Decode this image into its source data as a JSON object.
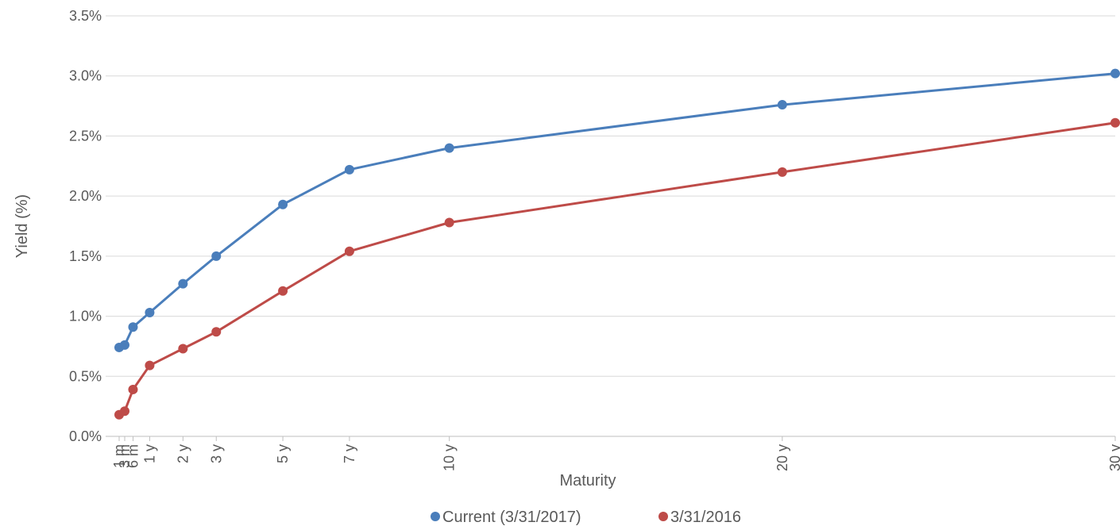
{
  "chart_data": {
    "type": "line",
    "xlabel": "Maturity",
    "ylabel": "Yield (%)",
    "y_unit": "%",
    "ylim": [
      0,
      3.5
    ],
    "y_ticks": [
      "0.0%",
      "0.5%",
      "1.0%",
      "1.5%",
      "2.0%",
      "2.5%",
      "3.0%",
      "3.5%"
    ],
    "x_scale": "linear in years",
    "x_ticks": [
      {
        "label": "1 m",
        "years": 0.0833
      },
      {
        "label": "3 m",
        "years": 0.25
      },
      {
        "label": "6 m",
        "years": 0.5
      },
      {
        "label": "1 y",
        "years": 1
      },
      {
        "label": "2 y",
        "years": 2
      },
      {
        "label": "3 y",
        "years": 3
      },
      {
        "label": "5 y",
        "years": 5
      },
      {
        "label": "7 y",
        "years": 7
      },
      {
        "label": "10 y",
        "years": 10
      },
      {
        "label": "20 y",
        "years": 20
      },
      {
        "label": "30 y",
        "years": 30
      }
    ],
    "grid": true,
    "legend_position": "bottom-center",
    "series": [
      {
        "name": "Current (3/31/2017)",
        "color": "#4a7ebb",
        "values": [
          0.74,
          0.76,
          0.91,
          1.03,
          1.27,
          1.5,
          1.93,
          2.22,
          2.4,
          2.76,
          3.02
        ]
      },
      {
        "name": "3/31/2016",
        "color": "#be4b48",
        "values": [
          0.18,
          0.21,
          0.39,
          0.59,
          0.73,
          0.87,
          1.21,
          1.54,
          1.78,
          2.2,
          2.61
        ]
      }
    ]
  }
}
